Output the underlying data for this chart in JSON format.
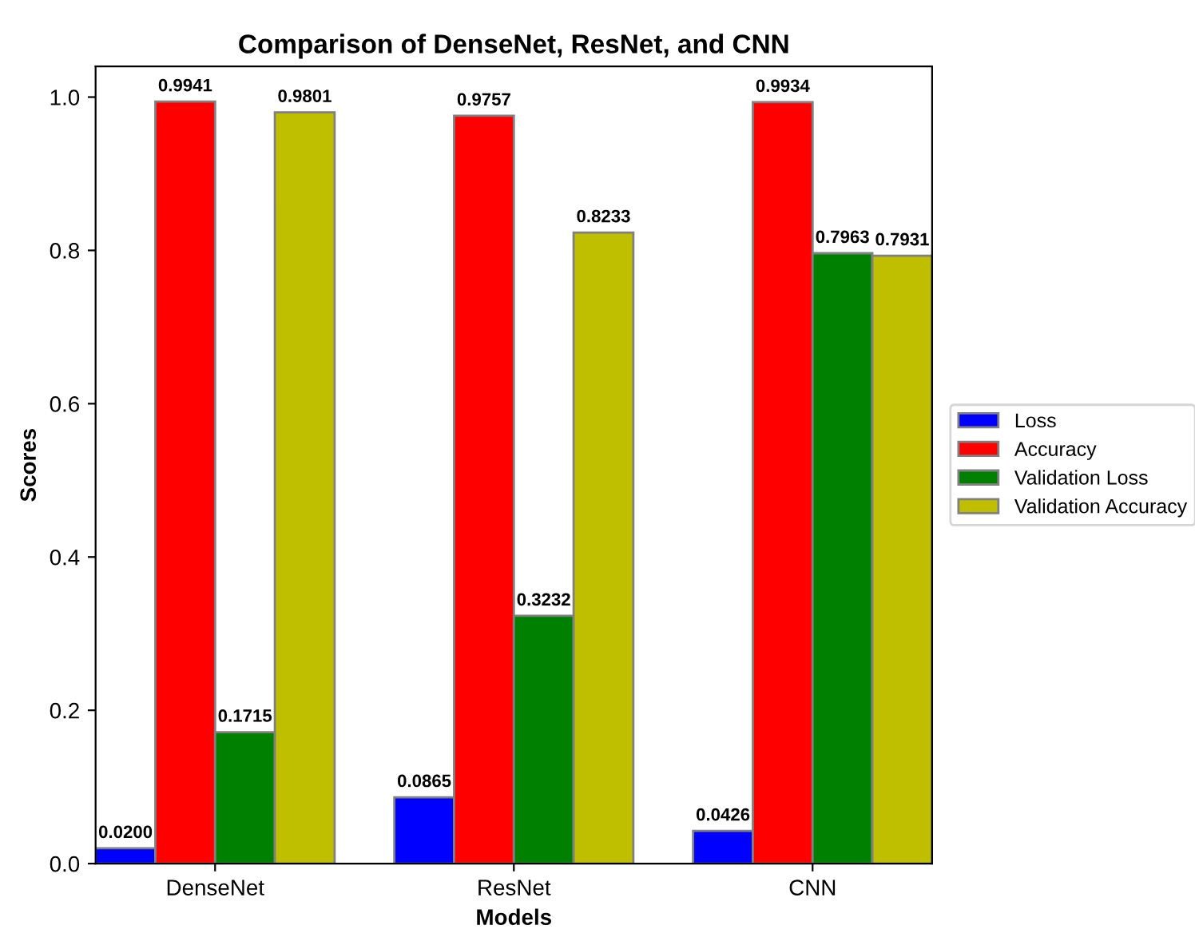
{
  "chart_data": {
    "type": "bar",
    "title": "Comparison of DenseNet, ResNet, and CNN",
    "xlabel": "Models",
    "ylabel": "Scores",
    "categories": [
      "DenseNet",
      "ResNet",
      "CNN"
    ],
    "series": [
      {
        "name": "Loss",
        "color": "#0000ff",
        "values": [
          0.02,
          0.0865,
          0.0426
        ],
        "value_labels": [
          "0.0200",
          "0.0865",
          "0.0426"
        ]
      },
      {
        "name": "Accuracy",
        "color": "#ff0000",
        "values": [
          0.9941,
          0.9757,
          0.9934
        ],
        "value_labels": [
          "0.9941",
          "0.9757",
          "0.9934"
        ]
      },
      {
        "name": "Validation Loss",
        "color": "#008000",
        "values": [
          0.1715,
          0.3232,
          0.7963
        ],
        "value_labels": [
          "0.1715",
          "0.3232",
          "0.7963"
        ]
      },
      {
        "name": "Validation Accuracy",
        "color": "#bfbf00",
        "values": [
          0.9801,
          0.8233,
          0.7931
        ],
        "value_labels": [
          "0.9801",
          "0.8233",
          "0.7931"
        ]
      }
    ],
    "ylim": [
      0,
      1.04
    ],
    "yticks": [
      {
        "value": 0,
        "label": "0.0"
      },
      {
        "value": 0.2,
        "label": "0.2"
      },
      {
        "value": 0.4,
        "label": "0.4"
      },
      {
        "value": 0.6,
        "label": "0.6"
      },
      {
        "value": 0.8,
        "label": "0.8"
      },
      {
        "value": 1,
        "label": "1.0"
      }
    ],
    "legend": "right",
    "grid": false
  }
}
